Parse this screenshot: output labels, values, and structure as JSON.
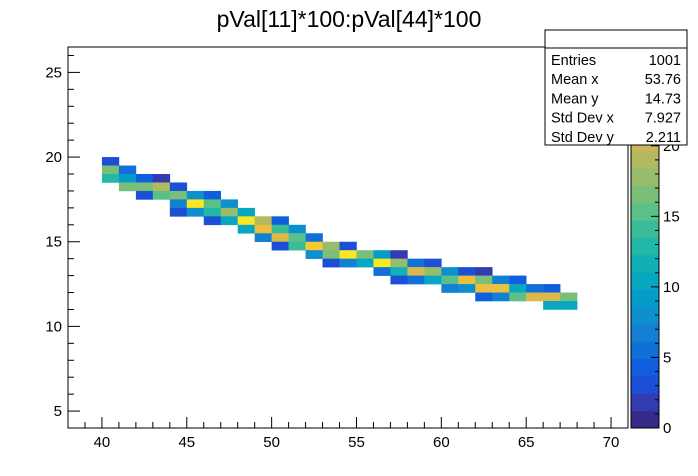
{
  "chart_data": {
    "type": "heatmap",
    "title": "pVal[11]*100:pVal[44]*100",
    "xlabel": "",
    "ylabel": "",
    "xlim": [
      38,
      71
    ],
    "ylim": [
      4,
      26.5
    ],
    "zlim": [
      0,
      27
    ],
    "bin_width_x": 1,
    "bin_width_y": 0.5,
    "x_ticks": [
      40,
      45,
      50,
      55,
      60,
      65,
      70
    ],
    "y_ticks": [
      5,
      10,
      15,
      20,
      25
    ],
    "z_ticks": [
      0,
      5,
      10,
      15,
      20
    ],
    "bins": [
      [
        40,
        19.5,
        3
      ],
      [
        40,
        19,
        16
      ],
      [
        40,
        18.5,
        13
      ],
      [
        41,
        19,
        6
      ],
      [
        41,
        18.5,
        9
      ],
      [
        41,
        18,
        16
      ],
      [
        42,
        18.5,
        4
      ],
      [
        42,
        18,
        16
      ],
      [
        42,
        17.5,
        3
      ],
      [
        43,
        18.5,
        2
      ],
      [
        43,
        18,
        19
      ],
      [
        43,
        17.5,
        15
      ],
      [
        44,
        18,
        3
      ],
      [
        44,
        17.5,
        17
      ],
      [
        44,
        17,
        7
      ],
      [
        44,
        16.5,
        3
      ],
      [
        45,
        17.5,
        8
      ],
      [
        45,
        17,
        27
      ],
      [
        45,
        16.5,
        8
      ],
      [
        46,
        17.5,
        4
      ],
      [
        46,
        17,
        15
      ],
      [
        46,
        16.5,
        13
      ],
      [
        46,
        16,
        3
      ],
      [
        47,
        17,
        8
      ],
      [
        47,
        16.5,
        18
      ],
      [
        47,
        16,
        10
      ],
      [
        48,
        16.5,
        10
      ],
      [
        48,
        16,
        27
      ],
      [
        48,
        15.5,
        11
      ],
      [
        49,
        16,
        19
      ],
      [
        49,
        15.5,
        23
      ],
      [
        49,
        15,
        7
      ],
      [
        50,
        16,
        4
      ],
      [
        50,
        15.5,
        14
      ],
      [
        50,
        15,
        22
      ],
      [
        50,
        14.5,
        3
      ],
      [
        51,
        15.5,
        8
      ],
      [
        51,
        15,
        15
      ],
      [
        51,
        14.5,
        14
      ],
      [
        52,
        15,
        6
      ],
      [
        52,
        14.5,
        24
      ],
      [
        52,
        14,
        8
      ],
      [
        53,
        14.5,
        18
      ],
      [
        53,
        14,
        17
      ],
      [
        53,
        13.5,
        3
      ],
      [
        54,
        14.5,
        3
      ],
      [
        54,
        14,
        27
      ],
      [
        54,
        13.5,
        7
      ],
      [
        55,
        14,
        17
      ],
      [
        55,
        13.5,
        11
      ],
      [
        56,
        14,
        9
      ],
      [
        56,
        13.5,
        26
      ],
      [
        56,
        13,
        6
      ],
      [
        57,
        14,
        2
      ],
      [
        57,
        13.5,
        18
      ],
      [
        57,
        13,
        12
      ],
      [
        57,
        12.5,
        3
      ],
      [
        58,
        13.5,
        5
      ],
      [
        58,
        13,
        22
      ],
      [
        58,
        12.5,
        6
      ],
      [
        59,
        13.5,
        3
      ],
      [
        59,
        13,
        18
      ],
      [
        59,
        12.5,
        11
      ],
      [
        60,
        13,
        8
      ],
      [
        60,
        12.5,
        15
      ],
      [
        60,
        12,
        7
      ],
      [
        61,
        13,
        3
      ],
      [
        61,
        12.5,
        23
      ],
      [
        61,
        12,
        8
      ],
      [
        62,
        13,
        2
      ],
      [
        62,
        12.5,
        16
      ],
      [
        62,
        12,
        23
      ],
      [
        62,
        11.5,
        4
      ],
      [
        63,
        12.5,
        7
      ],
      [
        63,
        12,
        23
      ],
      [
        63,
        11.5,
        7
      ],
      [
        64,
        12.5,
        4
      ],
      [
        64,
        12,
        11
      ],
      [
        64,
        11.5,
        15
      ],
      [
        65,
        12,
        6
      ],
      [
        65,
        11.5,
        22
      ],
      [
        66,
        12,
        4
      ],
      [
        66,
        11.5,
        22
      ],
      [
        66,
        11,
        10
      ],
      [
        67,
        11.5,
        17
      ],
      [
        67,
        11,
        10
      ]
    ],
    "stats_box": {
      "header": "",
      "rows": [
        {
          "label": "Entries",
          "value": "1001"
        },
        {
          "label": "Mean x",
          "value": "53.76"
        },
        {
          "label": "Mean y",
          "value": "14.73"
        },
        {
          "label": "Std Dev x",
          "value": "7.927"
        },
        {
          "label": "Std Dev y",
          "value": "2.211"
        }
      ]
    },
    "palette": [
      "#352a87",
      "#323bb0",
      "#1a4fd6",
      "#0f5fdd",
      "#1170d7",
      "#1380d3",
      "#0e8fce",
      "#069cc9",
      "#07a7c2",
      "#11b0b6",
      "#22b7a8",
      "#3bbc98",
      "#5bc087",
      "#79bf78",
      "#96bc6c",
      "#b2b961",
      "#cab657",
      "#dcb84a",
      "#ecbf3e",
      "#f8c932",
      "#f9d82b",
      "#f9e922"
    ],
    "grid": false,
    "legend": "none"
  }
}
